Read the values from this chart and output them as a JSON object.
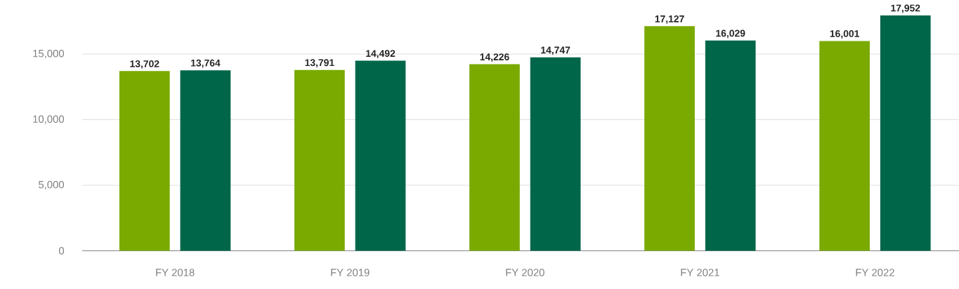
{
  "chart_data": {
    "type": "bar",
    "categories": [
      "FY 2018",
      "FY 2019",
      "FY 2020",
      "FY 2021",
      "FY 2022"
    ],
    "series": [
      {
        "color": "#7aaa00",
        "values": [
          13702,
          13791,
          14226,
          17127,
          16001
        ],
        "value_labels": [
          "13,702",
          "13,791",
          "14,226",
          "17,127",
          "16,001"
        ]
      },
      {
        "color": "#00664a",
        "values": [
          13764,
          14492,
          14747,
          16029,
          17952
        ],
        "value_labels": [
          "13,764",
          "14,492",
          "14,747",
          "16,029",
          "17,952"
        ]
      }
    ],
    "ylim": [
      0,
      17952
    ],
    "yticks": [
      0,
      {
        "value": 5000,
        "label": "5,000"
      },
      {
        "value": 10000,
        "label": "10,000"
      },
      {
        "value": 15000,
        "label": "15,000"
      }
    ],
    "grid": "y"
  }
}
